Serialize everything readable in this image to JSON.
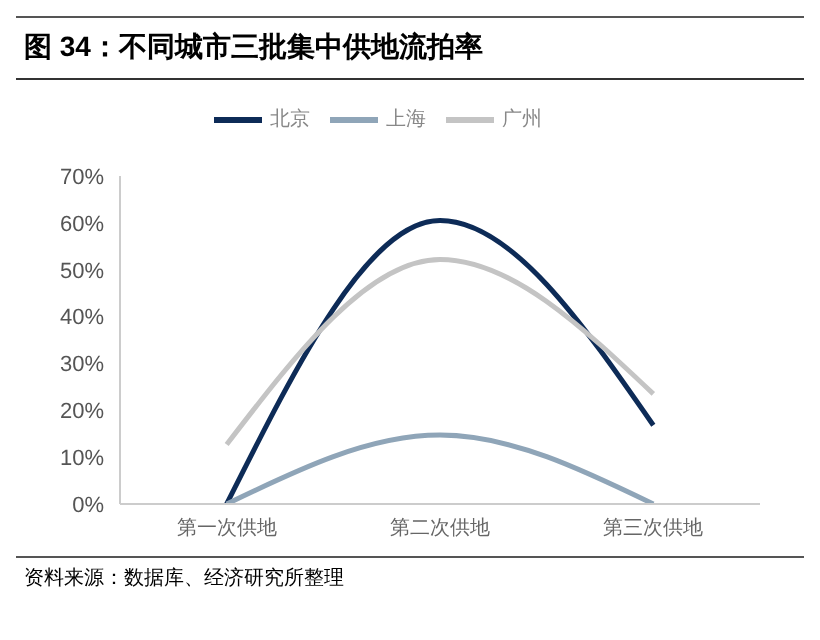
{
  "chart_data": {
    "type": "line",
    "title": "图 34：不同城市三批集中供地流拍率",
    "categories": [
      "第一次供地",
      "第二次供地",
      "第三次供地"
    ],
    "series": [
      {
        "name": "北京",
        "color": "#0d2b57",
        "values": [
          0,
          60.5,
          16.8
        ]
      },
      {
        "name": "上海",
        "color": "#8fa5b8",
        "values": [
          0,
          14.7,
          0
        ]
      },
      {
        "name": "广州",
        "color": "#c4c4c4",
        "values": [
          12.7,
          52.2,
          23.5
        ]
      }
    ],
    "ylim": [
      0,
      70
    ],
    "yticks": [
      {
        "value": 0,
        "label": "0%"
      },
      {
        "value": 10,
        "label": "10%"
      },
      {
        "value": 20,
        "label": "20%"
      },
      {
        "value": 30,
        "label": "30%"
      },
      {
        "value": 40,
        "label": "40%"
      },
      {
        "value": 50,
        "label": "50%"
      },
      {
        "value": 60,
        "label": "60%"
      },
      {
        "value": 70,
        "label": "70%"
      }
    ],
    "grid": false,
    "legend": "top",
    "marker": "none",
    "line_style": "solid",
    "annotations": [
      "资料来源：数据库、经济研究所整理"
    ]
  }
}
